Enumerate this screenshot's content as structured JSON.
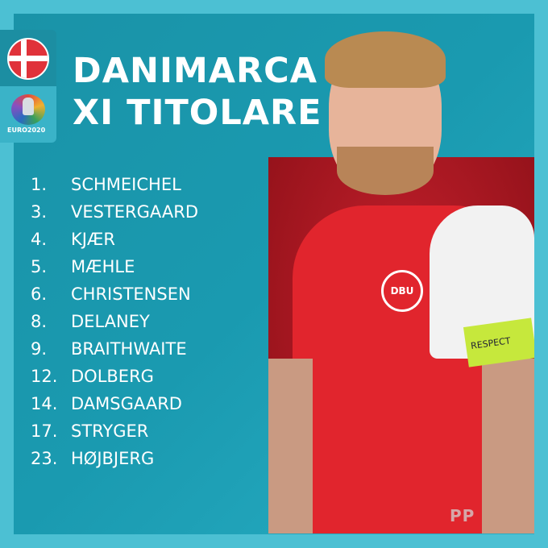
{
  "header": {
    "title_line1": "DANIMARCA",
    "title_line2": "XI TITOLARE"
  },
  "badges": {
    "flag": "denmark-flag",
    "logo_text": "EURO2020"
  },
  "lineup": [
    {
      "number": "1.",
      "name": "SCHMEICHEL"
    },
    {
      "number": "3.",
      "name": "VESTERGAARD"
    },
    {
      "number": "4.",
      "name": "KJÆR"
    },
    {
      "number": "5.",
      "name": "MÆHLE"
    },
    {
      "number": "6.",
      "name": "CHRISTENSEN"
    },
    {
      "number": "8.",
      "name": "DELANEY"
    },
    {
      "number": "9.",
      "name": "BRAITHWAITE"
    },
    {
      "number": "12.",
      "name": "DOLBERG"
    },
    {
      "number": "14.",
      "name": "DAMSGAARD"
    },
    {
      "number": "17.",
      "name": "STRYGER"
    },
    {
      "number": "23.",
      "name": "HØJBJERG"
    }
  ],
  "photo": {
    "crest_text": "DBU",
    "armband_text": "RESPECT"
  },
  "watermark": "PP",
  "colors": {
    "border": "#4cc0d3",
    "panel": "#1a93a8",
    "photo_bg": "#c4202c"
  }
}
